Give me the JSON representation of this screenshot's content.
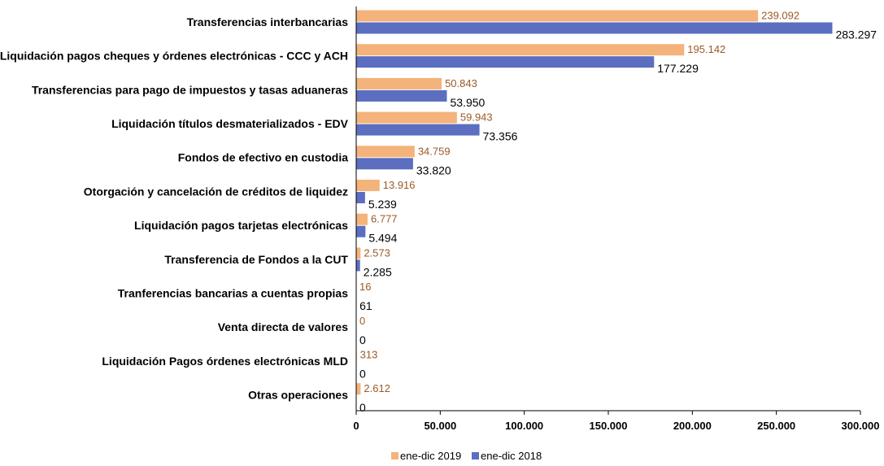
{
  "chart_data": {
    "type": "bar",
    "orientation": "horizontal",
    "categories": [
      "Transferencias interbancarias",
      "Liquidación pagos cheques y órdenes electrónicas - CCC y ACH",
      "Transferencias para pago de impuestos y tasas aduaneras",
      "Liquidación títulos desmaterializados - EDV",
      "Fondos de efectivo en custodia",
      "Otorgación y cancelación de créditos de liquidez",
      "Liquidación pagos tarjetas electrónicas",
      "Transferencia de Fondos a la CUT",
      "Tranferencias bancarias a cuentas propias",
      "Venta directa de valores",
      "Liquidación Pagos órdenes electrónicas MLD",
      "Otras operaciones"
    ],
    "series": [
      {
        "name": "ene-dic 2019",
        "color": "#f4b37a",
        "values": [
          239092,
          195142,
          50843,
          59943,
          34759,
          13916,
          6777,
          2573,
          16,
          0,
          313,
          2612
        ],
        "labels": [
          "239.092",
          "195.142",
          "50.843",
          "59.943",
          "34.759",
          "13.916",
          "6.777",
          "2.573",
          "16",
          "0",
          "313",
          "2.612"
        ]
      },
      {
        "name": "ene-dic 2018",
        "color": "#5b6ec0",
        "values": [
          283297,
          177229,
          53950,
          73356,
          33820,
          5239,
          5494,
          2285,
          61,
          0,
          0,
          0
        ],
        "labels": [
          "283.297",
          "177.229",
          "53.950",
          "73.356",
          "33.820",
          "5.239",
          "5.494",
          "2.285",
          "61",
          "0",
          "0",
          "0"
        ]
      }
    ],
    "xlim": [
      0,
      300000
    ],
    "xticks": [
      0,
      50000,
      100000,
      150000,
      200000,
      250000,
      300000
    ],
    "xtick_labels": [
      "0",
      "50.000",
      "100.000",
      "150.000",
      "200.000",
      "250.000",
      "300.000"
    ],
    "legend_position": "bottom",
    "grid": false
  }
}
